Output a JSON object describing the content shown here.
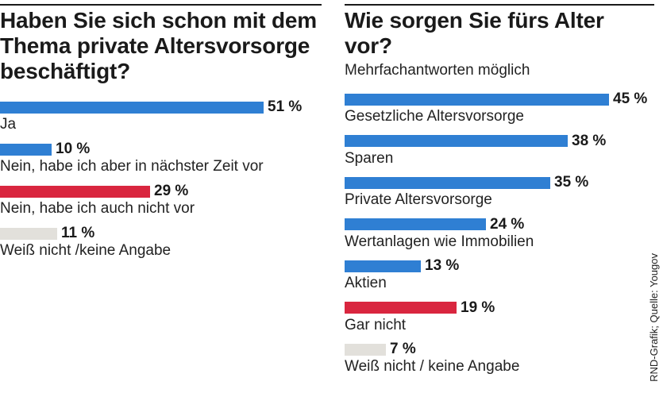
{
  "credit": "RND-Grafik; Quelle: Yougov",
  "chart_data": [
    {
      "type": "bar",
      "orientation": "horizontal",
      "title": "Haben Sie sich schon mit dem Thema private Altersvorsorge beschäftigt?",
      "categories": [
        "Ja",
        "Nein, habe ich aber in nächster Zeit vor",
        "Nein, habe ich auch nicht vor",
        "Weiß nicht /keine Angabe"
      ],
      "values": [
        51,
        10,
        29,
        11
      ],
      "labels": [
        "51 %",
        "10 %",
        "29 %",
        "11 %"
      ],
      "unit": "%",
      "colors": [
        "#2f7fd3",
        "#2f7fd3",
        "#d9263f",
        "#e2e0db"
      ],
      "xlim": [
        0,
        100
      ],
      "grid": false,
      "legend": "none"
    },
    {
      "type": "bar",
      "orientation": "horizontal",
      "title": "Wie sorgen Sie fürs Alter vor?",
      "subtitle": "Mehrfachantworten möglich",
      "categories": [
        "Gesetzliche Altersvorsorge",
        "Sparen",
        "Private Altersvorsorge",
        "Wertanlagen wie Immobilien",
        "Aktien",
        "Gar nicht",
        "Weiß nicht / keine Angabe"
      ],
      "values": [
        45,
        38,
        35,
        24,
        13,
        19,
        7
      ],
      "labels": [
        "45 %",
        "38 %",
        "35 %",
        "24 %",
        "13 %",
        "19 %",
        "7 %"
      ],
      "unit": "%",
      "colors": [
        "#2f7fd3",
        "#2f7fd3",
        "#2f7fd3",
        "#2f7fd3",
        "#2f7fd3",
        "#d9263f",
        "#e2e0db"
      ],
      "xlim": [
        0,
        100
      ],
      "grid": false,
      "legend": "none"
    }
  ]
}
